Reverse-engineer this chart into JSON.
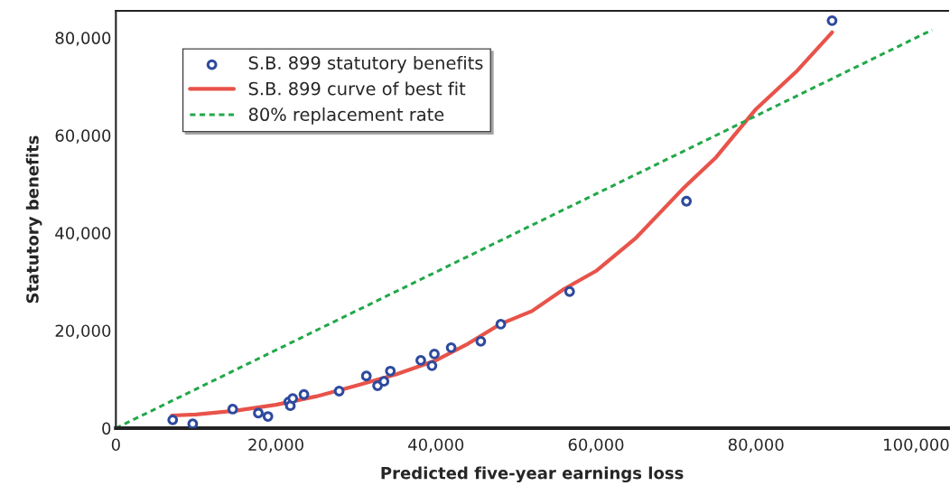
{
  "chart_data": {
    "type": "scatter",
    "xlabel": "Predicted five-year earnings loss",
    "ylabel": "Statutory benefits",
    "xlim": [
      0,
      104000
    ],
    "ylim": [
      0,
      85500
    ],
    "xticks": [
      {
        "value": 0,
        "label": "0"
      },
      {
        "value": 20000,
        "label": "20,000"
      },
      {
        "value": 40000,
        "label": "40,000"
      },
      {
        "value": 60000,
        "label": "60,000"
      },
      {
        "value": 80000,
        "label": "80,000"
      },
      {
        "value": 100000,
        "label": "100,000"
      }
    ],
    "yticks": [
      {
        "value": 0,
        "label": "0"
      },
      {
        "value": 20000,
        "label": "20,000"
      },
      {
        "value": 40000,
        "label": "40,000"
      },
      {
        "value": 60000,
        "label": "60,000"
      },
      {
        "value": 80000,
        "label": "80,000"
      }
    ],
    "grid": false,
    "legend": "top left",
    "series": [
      {
        "name": "S.B. 899 statutory benefits",
        "marker": "circle",
        "color": "#2e4a9e",
        "x": [
          7100,
          9600,
          14600,
          17800,
          19000,
          21600,
          21800,
          22100,
          23500,
          27900,
          31300,
          32700,
          33500,
          34300,
          38100,
          39500,
          39800,
          41900,
          45600,
          48100,
          56700,
          71300,
          89500
        ],
        "values": [
          1700,
          900,
          3900,
          3100,
          2400,
          5400,
          4600,
          6100,
          6900,
          7600,
          10700,
          8700,
          9600,
          11700,
          13900,
          12800,
          15200,
          16500,
          17800,
          21300,
          28000,
          46500,
          83500
        ]
      },
      {
        "name": "S.B. 899 curve of best fit",
        "type": "line",
        "line_style": "solid",
        "color": "#e8534a",
        "x": [
          7000,
          10000,
          15000,
          20000,
          25000,
          30000,
          35000,
          40000,
          44000,
          48000,
          52000,
          56000,
          60000,
          65000,
          71000,
          75000,
          80000,
          85000,
          89500
        ],
        "values": [
          2600,
          2800,
          3600,
          4800,
          6500,
          8700,
          11000,
          13900,
          17300,
          21300,
          24000,
          28500,
          32200,
          39000,
          49300,
          55500,
          65400,
          73000,
          81100
        ]
      },
      {
        "name": "80% replacement rate",
        "type": "line",
        "line_style": "dashed",
        "color": "#22a84a",
        "x": [
          0,
          102000
        ],
        "values": [
          0,
          81600
        ]
      }
    ]
  }
}
